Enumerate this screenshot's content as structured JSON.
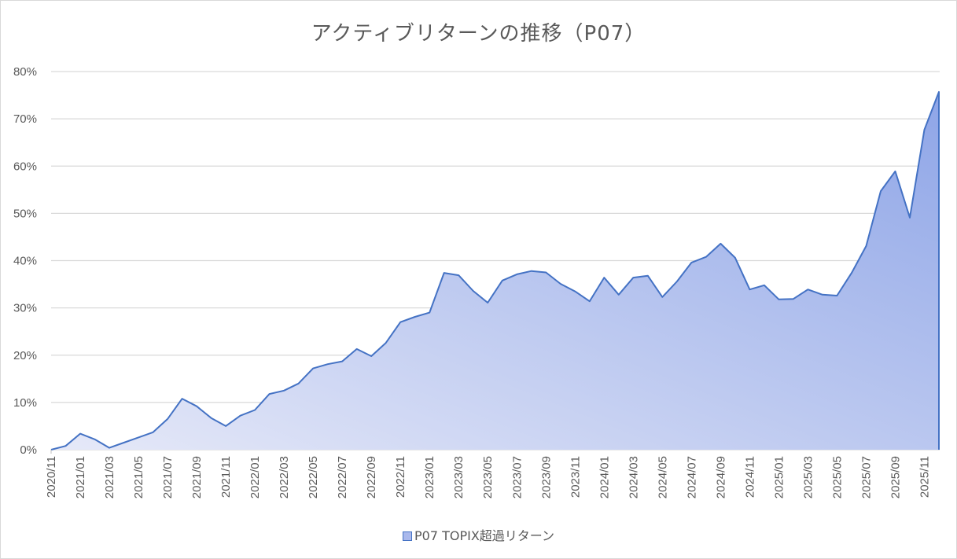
{
  "chart_data": {
    "type": "area",
    "title": "アクティブリターンの推移（P07）",
    "xlabel": "",
    "ylabel": "",
    "ylim": [
      0,
      80
    ],
    "yticks": [
      "0%",
      "10%",
      "20%",
      "30%",
      "40%",
      "50%",
      "60%",
      "70%",
      "80%"
    ],
    "grid": true,
    "legend_position": "bottom",
    "x": [
      "2020/11",
      "2020/12",
      "2021/01",
      "2021/02",
      "2021/03",
      "2021/04",
      "2021/05",
      "2021/06",
      "2021/07",
      "2021/08",
      "2021/09",
      "2021/10",
      "2021/11",
      "2021/12",
      "2022/01",
      "2022/02",
      "2022/03",
      "2022/04",
      "2022/05",
      "2022/06",
      "2022/07",
      "2022/08",
      "2022/09",
      "2022/10",
      "2022/11",
      "2022/12",
      "2023/01",
      "2023/02",
      "2023/03",
      "2023/04",
      "2023/05",
      "2023/06",
      "2023/07",
      "2023/08",
      "2023/09",
      "2023/10",
      "2023/11",
      "2023/12",
      "2024/01",
      "2024/02",
      "2024/03",
      "2024/04",
      "2024/05",
      "2024/06",
      "2024/07",
      "2024/08",
      "2024/09",
      "2024/10",
      "2024/11",
      "2024/12",
      "2025/01",
      "2025/02",
      "2025/03",
      "2025/04",
      "2025/05",
      "2025/06",
      "2025/07",
      "2025/08",
      "2025/09",
      "2025/10",
      "2025/11",
      "2025/12"
    ],
    "xtick_labels": [
      "2020/11",
      "2021/01",
      "2021/03",
      "2021/05",
      "2021/07",
      "2021/09",
      "2021/11",
      "2022/01",
      "2022/03",
      "2022/05",
      "2022/07",
      "2022/09",
      "2022/11",
      "2023/01",
      "2023/03",
      "2023/05",
      "2023/07",
      "2023/09",
      "2023/11",
      "2024/01",
      "2024/03",
      "2024/05",
      "2024/07",
      "2024/09",
      "2024/11",
      "2025/01",
      "2025/03",
      "2025/05",
      "2025/07",
      "2025/09",
      "2025/11"
    ],
    "series": [
      {
        "name": "P07 TOPIX超過リターン",
        "color": "#4472c4",
        "values": [
          0.0,
          0.8,
          3.4,
          2.2,
          0.4,
          1.5,
          2.6,
          3.7,
          6.5,
          10.8,
          9.2,
          6.7,
          5.0,
          7.2,
          8.4,
          11.8,
          12.5,
          14.0,
          17.2,
          18.1,
          18.7,
          21.3,
          19.8,
          22.6,
          27.0,
          28.1,
          29.0,
          37.4,
          36.9,
          33.6,
          31.1,
          35.8,
          37.1,
          37.8,
          37.5,
          35.1,
          33.5,
          31.4,
          36.4,
          32.8,
          36.4,
          36.8,
          32.3,
          35.6,
          39.6,
          40.8,
          43.6,
          40.6,
          33.9,
          34.8,
          31.8,
          31.9,
          33.9,
          32.8,
          32.6,
          37.4,
          43.1,
          54.7,
          58.9,
          49.1,
          67.7,
          75.7
        ]
      }
    ]
  },
  "legend": {
    "label": "P07 TOPIX超過リターン"
  },
  "colors": {
    "line": "#4472c4",
    "fill_start": "#e3e7f7",
    "fill_end": "#8fa6e8",
    "grid": "#d9d9d9",
    "text": "#595959"
  }
}
